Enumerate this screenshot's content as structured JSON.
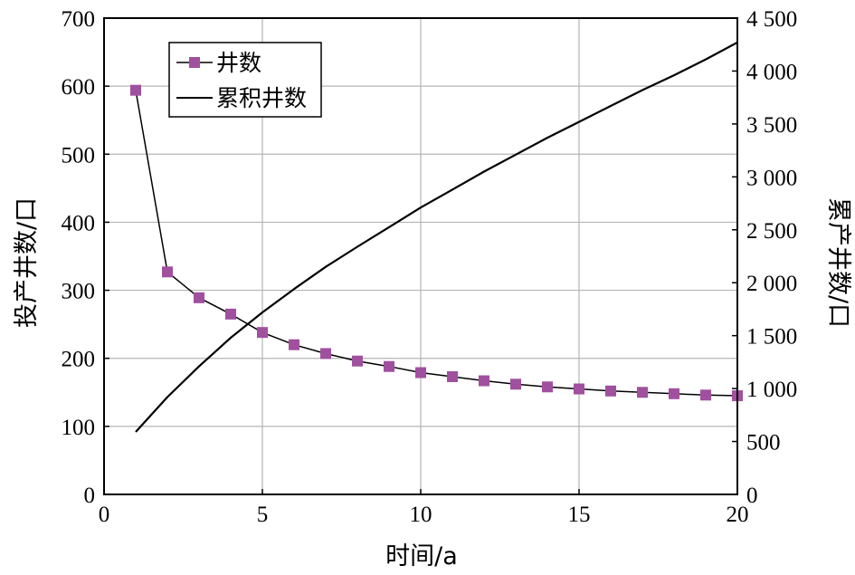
{
  "chart_data": {
    "type": "line",
    "xlabel": "时间/a",
    "ylabel_left": "投产井数/口",
    "ylabel_right": "累产井数/口",
    "xlim": [
      0,
      20
    ],
    "ylim_left": [
      0,
      700
    ],
    "ylim_right": [
      0,
      4500
    ],
    "x_ticks": [
      0,
      5,
      10,
      15,
      20
    ],
    "x_tick_labels": [
      "0",
      "5",
      "10",
      "15",
      "20"
    ],
    "y_left_ticks": [
      0,
      100,
      200,
      300,
      400,
      500,
      600,
      700
    ],
    "y_left_tick_labels": [
      "0",
      "100",
      "200",
      "300",
      "400",
      "500",
      "600",
      "700"
    ],
    "y_right_ticks": [
      0,
      500,
      1000,
      1500,
      2000,
      2500,
      3000,
      3500,
      4000,
      4500
    ],
    "y_right_tick_labels": [
      "0",
      "500",
      "1 000",
      "1 500",
      "2 000",
      "2 500",
      "3 000",
      "3 500",
      "4 000",
      "4 500"
    ],
    "grid": true,
    "legend_position": "top-left",
    "series": [
      {
        "name": "井数",
        "axis": "left",
        "color": "#a0509e",
        "marker": "square",
        "x": [
          1,
          2,
          3,
          4,
          5,
          6,
          7,
          8,
          9,
          10,
          11,
          12,
          13,
          14,
          15,
          16,
          17,
          18,
          19,
          20
        ],
        "values": [
          594,
          327,
          289,
          265,
          238,
          220,
          207,
          196,
          188,
          179,
          173,
          167,
          162,
          158,
          155,
          152,
          150,
          148,
          146,
          145
        ]
      },
      {
        "name": "累积井数",
        "axis": "right",
        "color": "#000000",
        "marker": "none",
        "x": [
          1,
          2,
          3,
          4,
          5,
          6,
          7,
          8,
          9,
          10,
          11,
          12,
          13,
          14,
          15,
          16,
          17,
          18,
          19,
          20
        ],
        "values": [
          590,
          920,
          1210,
          1480,
          1720,
          1940,
          2150,
          2340,
          2525,
          2710,
          2880,
          3050,
          3210,
          3370,
          3520,
          3670,
          3820,
          3960,
          4110,
          4270
        ]
      }
    ]
  }
}
